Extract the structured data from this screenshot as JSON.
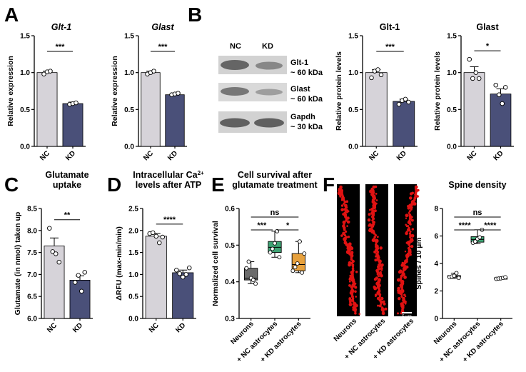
{
  "panels": {
    "A": "A",
    "B": "B",
    "C": "C",
    "D": "D",
    "E": "E",
    "F": "F"
  },
  "colors": {
    "nc": "#d6d3d9",
    "kd": "#4a5079",
    "neurons_box": "#6b6b6b",
    "nc_astro_box": "#3fa374",
    "kd_astro_box": "#e7a13d",
    "spine_red": "#e01212"
  },
  "blot": {
    "lanes": [
      "NC",
      "KD"
    ],
    "bands": [
      {
        "name": "Glt-1",
        "size": "~ 60 kDa"
      },
      {
        "name": "Glast",
        "size": "~ 60 kDa"
      },
      {
        "name": "Gapdh",
        "size": "~ 30 kDa"
      }
    ]
  },
  "images": {
    "labels": [
      "Neurons",
      "+ NC astrocytes",
      "+ KD astrocytes"
    ],
    "scale_bar": "5 µm"
  },
  "chart_data": [
    {
      "id": "A1",
      "type": "bar",
      "title": "Glt-1",
      "title_italic": true,
      "ylabel": "Relative expression",
      "ylim": [
        0,
        1.5
      ],
      "yticks": [
        "0.0",
        "0.5",
        "1.0",
        "1.5"
      ],
      "categories": [
        "NC",
        "KD"
      ],
      "values": [
        1.0,
        0.58
      ],
      "errors": [
        0.02,
        0.02
      ],
      "points": [
        [
          0.98,
          1.01,
          1.02
        ],
        [
          0.57,
          0.58,
          0.59
        ]
      ],
      "significance": "***"
    },
    {
      "id": "A2",
      "type": "bar",
      "title": "Glast",
      "title_italic": true,
      "ylabel": "Relative expression",
      "ylim": [
        0,
        1.5
      ],
      "yticks": [
        "0.0",
        "0.5",
        "1.0",
        "1.5"
      ],
      "categories": [
        "NC",
        "KD"
      ],
      "values": [
        1.0,
        0.7
      ],
      "errors": [
        0.02,
        0.01
      ],
      "points": [
        [
          0.98,
          1.0,
          1.02
        ],
        [
          0.7,
          0.71,
          0.72
        ]
      ],
      "significance": "***"
    },
    {
      "id": "B1",
      "type": "bar",
      "title": "Glt-1",
      "title_italic": false,
      "ylabel": "Relative protein levels",
      "ylim": [
        0,
        1.5
      ],
      "yticks": [
        "0.0",
        "0.5",
        "1.0",
        "1.5"
      ],
      "categories": [
        "NC",
        "KD"
      ],
      "values": [
        1.0,
        0.61
      ],
      "errors": [
        0.04,
        0.03
      ],
      "points": [
        [
          0.93,
          1.02,
          1.04,
          0.97
        ],
        [
          0.57,
          0.62,
          0.64,
          0.6
        ]
      ],
      "significance": "***"
    },
    {
      "id": "B2",
      "type": "bar",
      "title": "Glast",
      "title_italic": false,
      "ylabel": "Relative protein levels",
      "ylim": [
        0,
        1.5
      ],
      "yticks": [
        "0.0",
        "0.5",
        "1.0",
        "1.5"
      ],
      "categories": [
        "NC",
        "KD"
      ],
      "values": [
        1.0,
        0.71
      ],
      "errors": [
        0.08,
        0.07
      ],
      "points": [
        [
          1.18,
          0.92,
          1.0,
          0.92
        ],
        [
          0.83,
          0.7,
          0.58,
          0.8
        ]
      ],
      "significance": "*"
    },
    {
      "id": "C",
      "type": "bar",
      "title": "Glutamate\nuptake",
      "title_italic": false,
      "ylabel": "Glutamate (in nmol) taken up",
      "ylim": [
        6.0,
        8.5
      ],
      "yticks": [
        "6.0",
        "6.5",
        "7.0",
        "7.5",
        "8.0",
        "8.5"
      ],
      "categories": [
        "NC",
        "KD"
      ],
      "values": [
        7.65,
        6.87
      ],
      "errors": [
        0.18,
        0.1
      ],
      "points": [
        [
          8.05,
          7.52,
          7.47,
          7.28
        ],
        [
          6.82,
          6.98,
          6.62,
          7.05
        ]
      ],
      "significance": "**"
    },
    {
      "id": "D",
      "type": "bar",
      "title": "Intracellular Ca2+\nlevels after ATP",
      "title_italic": false,
      "ylabel": "ΔRFU (max-min/min)",
      "ylim": [
        0,
        2.5
      ],
      "yticks": [
        "0.0",
        "0.5",
        "1.0",
        "1.5",
        "2.0",
        "2.5"
      ],
      "categories": [
        "NC",
        "KD"
      ],
      "values": [
        1.87,
        1.04
      ],
      "errors": [
        0.06,
        0.06
      ],
      "points": [
        [
          1.93,
          1.95,
          1.87,
          1.72,
          1.85
        ],
        [
          1.1,
          1.02,
          0.94,
          1.0,
          1.15
        ]
      ],
      "significance": "****"
    },
    {
      "id": "E",
      "type": "box",
      "title": "Cell survival after\nglutamate treatment",
      "title_italic": false,
      "ylabel": "Normalized cell survival",
      "ylim": [
        0.3,
        0.6
      ],
      "yticks": [
        "0.3",
        "0.4",
        "0.5",
        "0.6"
      ],
      "categories": [
        "Neurons",
        "+ NC astrocytes",
        "+ KD astrocytes"
      ],
      "boxes": [
        {
          "min": 0.395,
          "q1": 0.405,
          "median": 0.41,
          "q3": 0.437,
          "max": 0.455
        },
        {
          "min": 0.467,
          "q1": 0.48,
          "median": 0.494,
          "q3": 0.51,
          "max": 0.538
        },
        {
          "min": 0.425,
          "q1": 0.43,
          "median": 0.447,
          "q3": 0.477,
          "max": 0.51
        }
      ],
      "points": [
        [
          0.437,
          0.455,
          0.41,
          0.405,
          0.395
        ],
        [
          0.48,
          0.49,
          0.505,
          0.538,
          0.467
        ],
        [
          0.43,
          0.44,
          0.45,
          0.51,
          0.425,
          0.477
        ]
      ],
      "comparisons": [
        {
          "from": 0,
          "to": 1,
          "label": "***",
          "level": 0
        },
        {
          "from": 1,
          "to": 2,
          "label": "*",
          "level": 0
        },
        {
          "from": 0,
          "to": 2,
          "label": "ns",
          "level": 1
        }
      ]
    },
    {
      "id": "F",
      "type": "box",
      "title": "Spine density",
      "title_italic": false,
      "ylabel": "Spines / 10 µm",
      "ylim": [
        0,
        8
      ],
      "yticks": [
        "0",
        "2",
        "4",
        "6",
        "8"
      ],
      "categories": [
        "Neurons",
        "+ NC astrocytes",
        "+ KD astrocytes"
      ],
      "boxes": [
        {
          "min": 2.92,
          "q1": 3.0,
          "median": 3.05,
          "q3": 3.12,
          "max": 3.3
        },
        {
          "min": 5.45,
          "q1": 5.55,
          "median": 5.75,
          "q3": 5.95,
          "max": 6.45
        },
        {
          "min": 2.85,
          "q1": 2.88,
          "median": 2.92,
          "q3": 2.96,
          "max": 3.0
        }
      ],
      "points": [
        [
          3.0,
          3.05,
          3.1,
          3.3,
          2.95
        ],
        [
          5.5,
          5.6,
          5.8,
          5.9,
          6.45
        ],
        [
          2.88,
          2.9,
          2.92,
          2.95,
          3.0
        ]
      ],
      "comparisons": [
        {
          "from": 0,
          "to": 1,
          "label": "****",
          "level": 0
        },
        {
          "from": 1,
          "to": 2,
          "label": "****",
          "level": 0
        },
        {
          "from": 0,
          "to": 2,
          "label": "ns",
          "level": 1
        }
      ]
    }
  ]
}
